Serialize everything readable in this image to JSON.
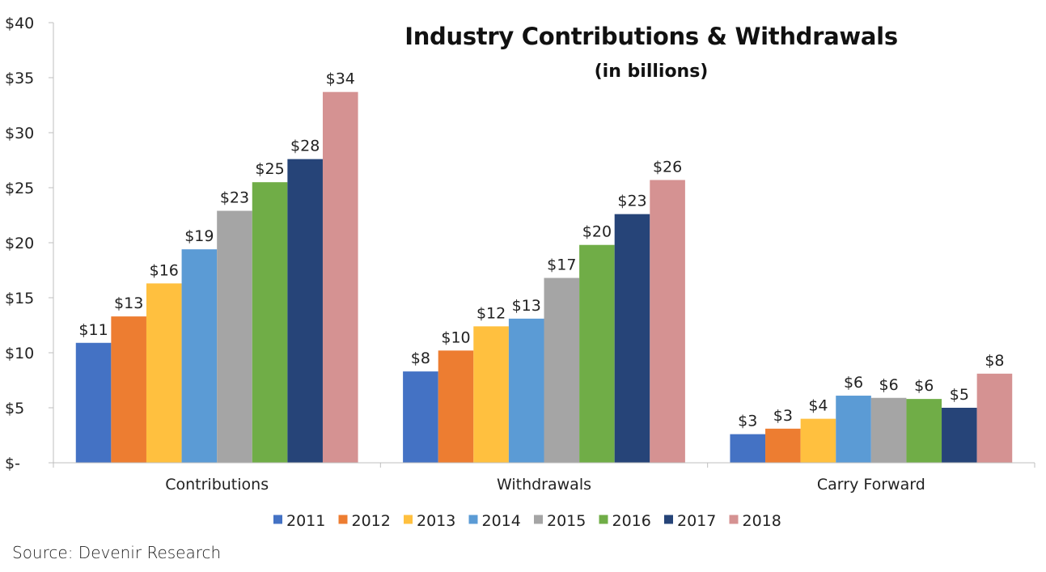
{
  "chart_data": {
    "type": "bar",
    "title": "Industry Contributions & Withdrawals",
    "subtitle": "(in billions)",
    "categories": [
      "Contributions",
      "Withdrawals",
      "Carry Forward"
    ],
    "series": [
      {
        "name": "2011",
        "color": "#4472C4",
        "values": [
          10.9,
          8.3,
          2.6
        ],
        "labels": [
          "$11",
          "$8",
          "$3"
        ]
      },
      {
        "name": "2012",
        "color": "#ED7D31",
        "values": [
          13.3,
          10.2,
          3.1
        ],
        "labels": [
          "$13",
          "$10",
          "$3"
        ]
      },
      {
        "name": "2013",
        "color": "#FFC03F",
        "values": [
          16.3,
          12.4,
          4.0
        ],
        "labels": [
          "$16",
          "$12",
          "$4"
        ]
      },
      {
        "name": "2014",
        "color": "#5B9BD5",
        "values": [
          19.4,
          13.1,
          6.1
        ],
        "labels": [
          "$19",
          "$13",
          "$6"
        ]
      },
      {
        "name": "2015",
        "color": "#A5A5A5",
        "values": [
          22.9,
          16.8,
          5.9
        ],
        "labels": [
          "$23",
          "$17",
          "$6"
        ]
      },
      {
        "name": "2016",
        "color": "#70AD47",
        "values": [
          25.5,
          19.8,
          5.8
        ],
        "labels": [
          "$25",
          "$20",
          "$6"
        ]
      },
      {
        "name": "2017",
        "color": "#264478",
        "values": [
          27.6,
          22.6,
          5.0
        ],
        "labels": [
          "$28",
          "$23",
          "$5"
        ]
      },
      {
        "name": "2018",
        "color": "#D59292",
        "values": [
          33.7,
          25.7,
          8.1
        ],
        "labels": [
          "$34",
          "$26",
          "$8"
        ]
      }
    ],
    "yticks": [
      0,
      5,
      10,
      15,
      20,
      25,
      30,
      35,
      40
    ],
    "ytick_labels": [
      "$-",
      "$5",
      "$10",
      "$15",
      "$20",
      "$25",
      "$30",
      "$35",
      "$40"
    ],
    "ylim": [
      0,
      40
    ],
    "legend_position": "bottom",
    "grid": false,
    "source": "Source: Devenir Research"
  }
}
